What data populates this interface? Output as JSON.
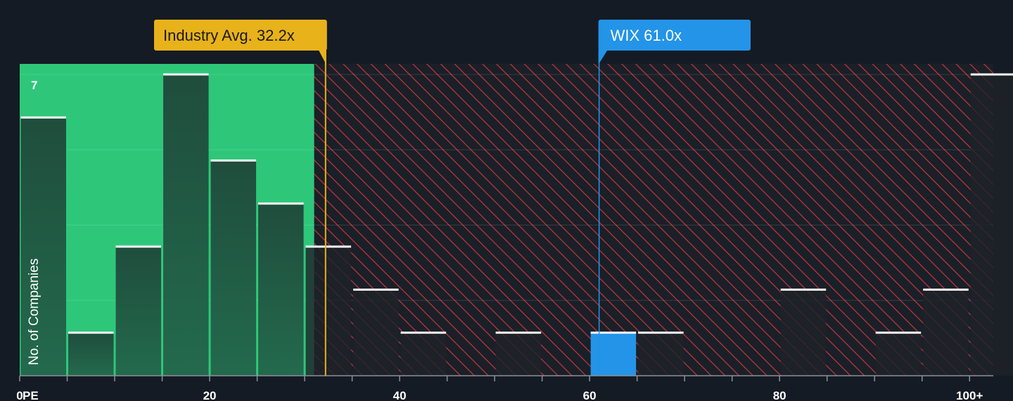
{
  "chart_data": {
    "type": "bar",
    "xlabel": "PE",
    "ylabel": "No. of Companies",
    "x_ticks": [
      "0",
      "20",
      "40",
      "60",
      "80",
      "100+"
    ],
    "y_top_label": "7",
    "ylim": [
      0,
      7
    ],
    "xlim": [
      0,
      102.5
    ],
    "bin_width": 5,
    "bins": [
      {
        "start": 0,
        "count": 6
      },
      {
        "start": 5,
        "count": 1
      },
      {
        "start": 10,
        "count": 3
      },
      {
        "start": 15,
        "count": 7
      },
      {
        "start": 20,
        "count": 5
      },
      {
        "start": 25,
        "count": 4
      },
      {
        "start": 30,
        "count": 3
      },
      {
        "start": 35,
        "count": 2
      },
      {
        "start": 40,
        "count": 1
      },
      {
        "start": 50,
        "count": 1
      },
      {
        "start": 60,
        "count": 1,
        "highlight": true
      },
      {
        "start": 65,
        "count": 1
      },
      {
        "start": 80,
        "count": 2
      },
      {
        "start": 90,
        "count": 1
      },
      {
        "start": 95,
        "count": 2
      },
      {
        "start": 100,
        "count": 7
      }
    ],
    "industry_avg": {
      "value": 32.2,
      "label": "Industry Avg. 32.2x"
    },
    "company": {
      "value": 61.0,
      "label": "WIX 61.0x"
    },
    "colors": {
      "background": "#151b24",
      "fair_zone": "#2ec77a",
      "bar_in_zone": "#1e4a3a",
      "bar_out_zone": "#232930",
      "hatch": "#c0393f",
      "industry": "#e8b21b",
      "company": "#2394e8",
      "cap": "#ffffff"
    }
  }
}
